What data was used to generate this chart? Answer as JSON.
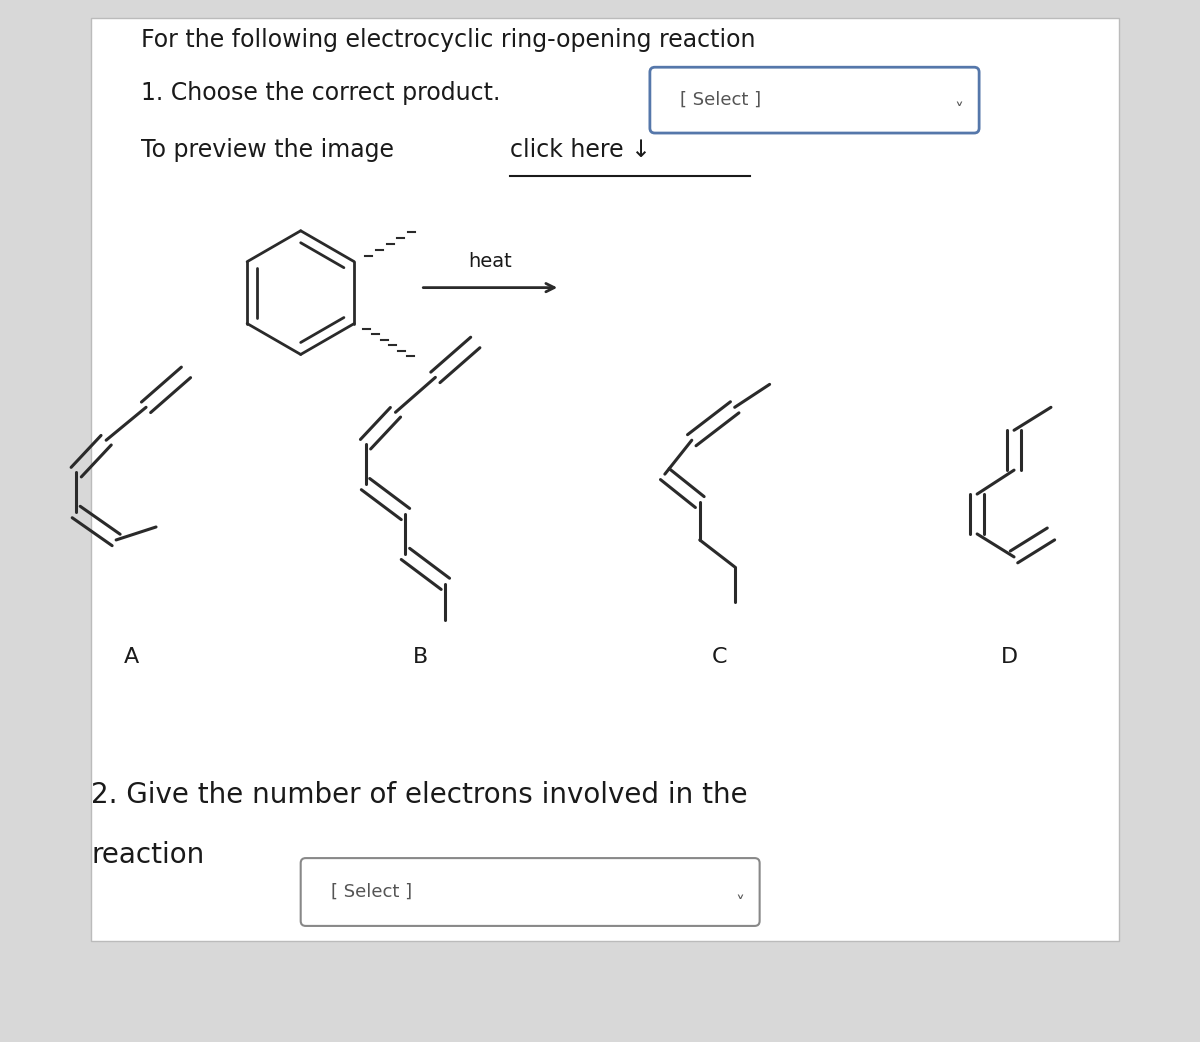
{
  "background_color": "#d8d8d8",
  "panel_color": "#f0f0f0",
  "title_line1": "For the following electrocyclic ring-opening reaction",
  "title_line2": "1. Choose the correct product.",
  "select_label1": "[ Select ]",
  "preview_text1": "To preview the image ",
  "preview_text2": "click here ↓",
  "heat_label": "heat",
  "molecule_labels": [
    "A",
    "B",
    "C",
    "D"
  ],
  "question2_line1": "2. Give the number of electrons involved in the",
  "question2_line2": "reaction",
  "select_label2": "[ Select ]",
  "text_color": "#1a1a1a",
  "box_color": "#6699cc",
  "line_color": "#2a2a2a"
}
